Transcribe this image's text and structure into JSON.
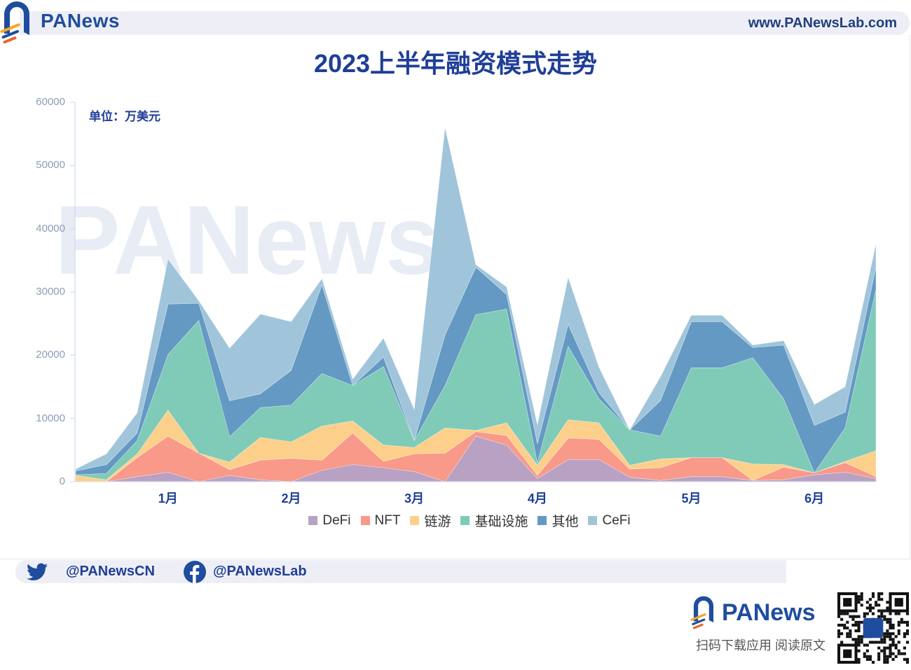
{
  "header": {
    "brand": "PANews",
    "url": "www.PANewsLab.com"
  },
  "chart": {
    "title": "2023上半年融资模式走势",
    "unit": "单位：万美元",
    "watermark": "PANews"
  },
  "chart_data": {
    "type": "area",
    "stacked": true,
    "title": "2023上半年融资模式走势",
    "subtitle": "单位：万美元",
    "xlabel": "",
    "ylabel": "",
    "ylim": [
      0,
      60000
    ],
    "yticks": [
      0,
      10000,
      20000,
      30000,
      40000,
      50000,
      60000
    ],
    "x_tick_labels": [
      "1月",
      "2月",
      "3月",
      "4月",
      "5月",
      "6月"
    ],
    "x_tick_point_index": [
      3,
      7,
      11,
      15,
      20,
      24
    ],
    "grid": false,
    "legend_position": "bottom",
    "n_points": 27,
    "series": [
      {
        "name": "DeFi",
        "color": "#b9a1c3",
        "values": [
          0,
          0,
          800,
          1500,
          0,
          1000,
          300,
          0,
          1800,
          2700,
          2200,
          1600,
          0,
          7200,
          5800,
          500,
          3500,
          3500,
          700,
          200,
          800,
          800,
          200,
          300,
          1100,
          1500,
          500
        ]
      },
      {
        "name": "NFT",
        "color": "#f8998a",
        "values": [
          0,
          0,
          3000,
          5700,
          4500,
          900,
          3100,
          3700,
          1600,
          5000,
          1000,
          2800,
          4500,
          700,
          1500,
          500,
          3400,
          3200,
          1300,
          2000,
          3000,
          3000,
          0,
          2000,
          300,
          1500,
          300
        ]
      },
      {
        "name": "链游",
        "color": "#fcd08a",
        "values": [
          1000,
          300,
          600,
          4100,
          0,
          1200,
          3600,
          2600,
          5400,
          1900,
          2600,
          1000,
          4000,
          200,
          2000,
          1600,
          2900,
          2600,
          600,
          1400,
          0,
          0,
          2600,
          400,
          0,
          200,
          4100
        ]
      },
      {
        "name": "基础设施",
        "color": "#80cab8",
        "values": [
          100,
          1000,
          2100,
          8800,
          21000,
          4000,
          4700,
          5800,
          8300,
          5600,
          12400,
          1100,
          6700,
          18300,
          18000,
          400,
          11600,
          3800,
          5600,
          3600,
          14200,
          14200,
          16800,
          10400,
          0,
          5300,
          25500
        ]
      },
      {
        "name": "其他",
        "color": "#6499c3",
        "values": [
          600,
          1400,
          1200,
          8000,
          2700,
          5700,
          2200,
          5500,
          14000,
          0,
          1500,
          0,
          8000,
          7500,
          2300,
          3000,
          3500,
          1000,
          0,
          5600,
          7300,
          7300,
          1600,
          8500,
          7500,
          2500,
          3500
        ]
      },
      {
        "name": "CeFi",
        "color": "#a0c5da",
        "values": [
          300,
          1700,
          3200,
          7100,
          400,
          8300,
          12600,
          7700,
          1000,
          1000,
          3000,
          4900,
          32800,
          400,
          1200,
          3000,
          7400,
          4000,
          0,
          3800,
          1000,
          1000,
          400,
          700,
          3300,
          4000,
          3700
        ]
      }
    ]
  },
  "legend": [
    {
      "label": "DeFi",
      "color": "#b9a1c3"
    },
    {
      "label": "NFT",
      "color": "#f8998a"
    },
    {
      "label": "链游",
      "color": "#fcd08a"
    },
    {
      "label": "基础设施",
      "color": "#80cab8"
    },
    {
      "label": "其他",
      "color": "#6499c3"
    },
    {
      "label": "CeFi",
      "color": "#a0c5da"
    }
  ],
  "footer": {
    "twitter": "@PANewsCN",
    "facebook": "@PANewsLab",
    "brand": "PANews",
    "caption": "扫码下载应用  阅读原文"
  }
}
